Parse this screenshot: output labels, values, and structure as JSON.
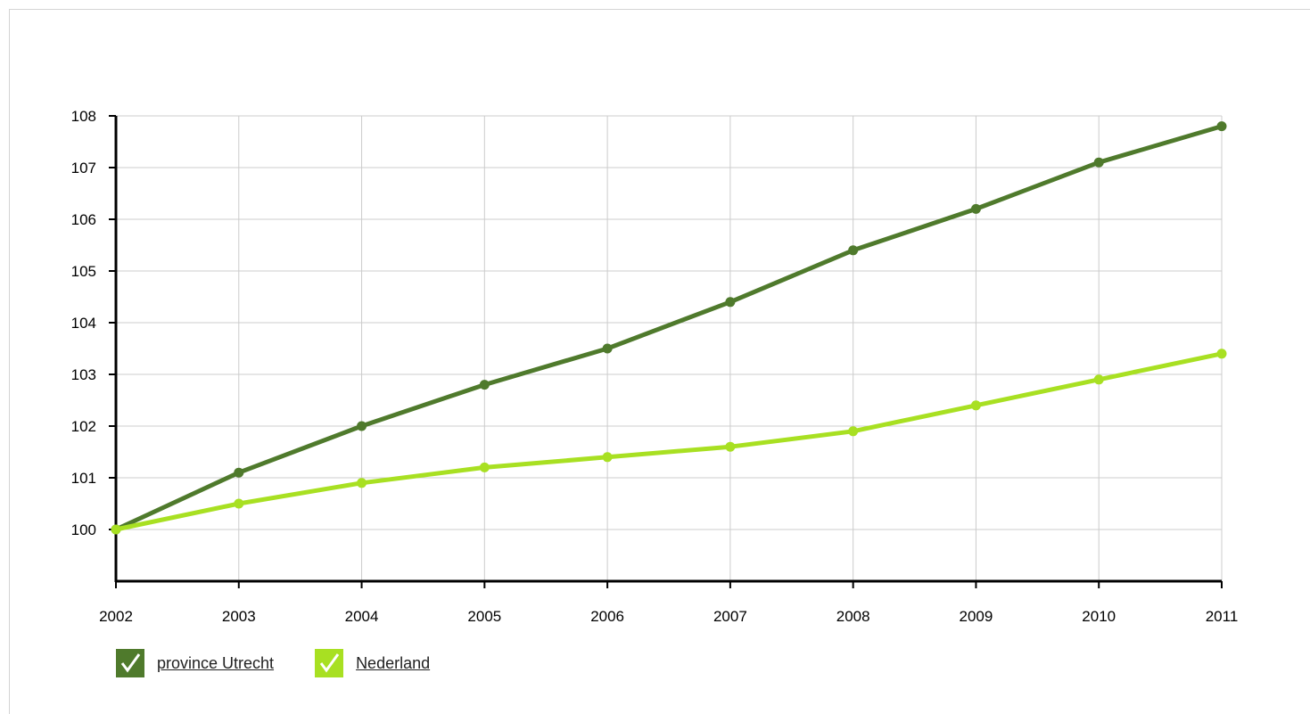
{
  "chart_data": {
    "type": "line",
    "title": "",
    "xlabel": "",
    "ylabel": "",
    "x": [
      "2002",
      "2003",
      "2004",
      "2005",
      "2006",
      "2007",
      "2008",
      "2009",
      "2010",
      "2011"
    ],
    "ylim": [
      99,
      108
    ],
    "yticks": [
      "100",
      "101",
      "102",
      "103",
      "104",
      "105",
      "106",
      "107",
      "108"
    ],
    "grid": true,
    "legend_position": "bottom-left",
    "series": [
      {
        "name": "province Utrecht",
        "color": "#4f7a2c",
        "values": [
          100,
          101.1,
          102.0,
          102.8,
          103.5,
          104.4,
          105.4,
          106.2,
          107.1,
          107.8
        ]
      },
      {
        "name": "Nederland",
        "color": "#a8e022",
        "values": [
          100,
          100.5,
          100.9,
          101.2,
          101.4,
          101.6,
          101.9,
          102.4,
          102.9,
          103.4
        ]
      }
    ]
  },
  "legend": {
    "items": [
      {
        "label": "province Utrecht",
        "color": "#4f7a2c",
        "checked": true,
        "icon": "checkbox-checked-icon"
      },
      {
        "label": "Nederland",
        "color": "#a8e022",
        "checked": true,
        "icon": "checkbox-checked-icon"
      }
    ]
  }
}
